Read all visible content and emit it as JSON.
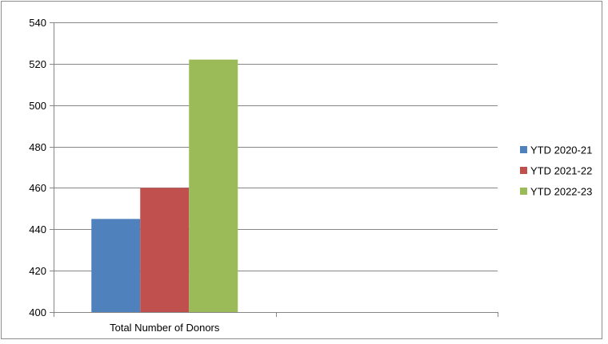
{
  "chart_data": {
    "type": "bar",
    "categories": [
      "Total Number of Donors",
      ""
    ],
    "series": [
      {
        "name": "YTD 2020-21",
        "color": "#4F81BD",
        "values": [
          445,
          null
        ]
      },
      {
        "name": "YTD 2021-22",
        "color": "#C0504D",
        "values": [
          460,
          null
        ]
      },
      {
        "name": "YTD 2022-23",
        "color": "#9BBB59",
        "values": [
          522,
          null
        ]
      }
    ],
    "ylim": [
      400,
      540
    ],
    "yticks": [
      400,
      420,
      440,
      460,
      480,
      500,
      520,
      540
    ],
    "grid": true,
    "legend": "right"
  }
}
